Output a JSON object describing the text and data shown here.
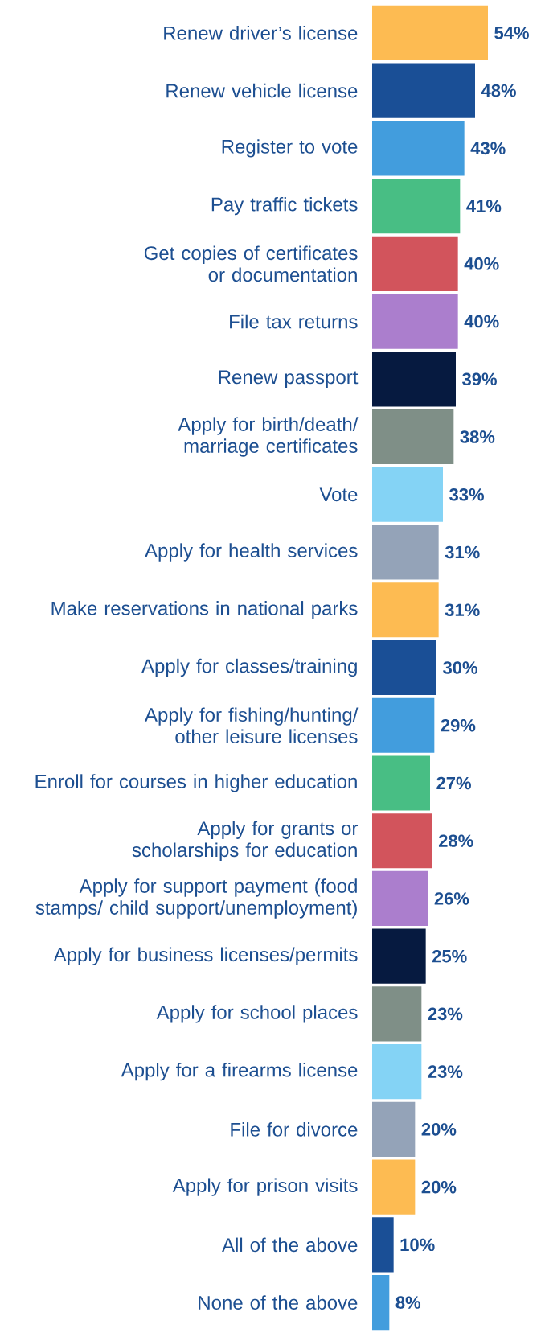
{
  "chart_data": {
    "type": "bar",
    "orientation": "horizontal",
    "categories": [
      "Renew driver’s license",
      "Renew vehicle license",
      "Register to vote",
      "Pay traffic tickets",
      "Get copies of certificates or documentation",
      "File tax returns",
      "Renew passport",
      "Apply for birth/death/ marriage certificates",
      "Vote",
      "Apply for health services",
      "Make reservations in national parks",
      "Apply for classes/training",
      "Apply for fishing/hunting/ other leisure licenses",
      "Enroll for courses in higher education",
      "Apply for grants or scholarships for education",
      "Apply for support payment (food stamps/ child support/unemployment)",
      "Apply for business licenses/permits",
      "Apply for school places",
      "Apply for a firearms license",
      "File for divorce",
      "Apply for prison visits",
      "All of the above",
      "None of the above"
    ],
    "values": [
      54,
      48,
      43,
      41,
      40,
      40,
      39,
      38,
      33,
      31,
      31,
      30,
      29,
      27,
      28,
      26,
      25,
      23,
      23,
      20,
      20,
      10,
      8
    ],
    "value_labels": [
      "54%",
      "48%",
      "43%",
      "41%",
      "40%",
      "40%",
      "39%",
      "38%",
      "33%",
      "31%",
      "31%",
      "30%",
      "29%",
      "27%",
      "28%",
      "26%",
      "25%",
      "23%",
      "23%",
      "20%",
      "20%",
      "10%",
      "8%"
    ],
    "colors": [
      "#fdbb52",
      "#1a4f96",
      "#429ddd",
      "#48be84",
      "#d2545c",
      "#ab7ecd",
      "#061a40",
      "#7f8f87",
      "#84d3f5",
      "#94a3b8",
      "#fdbb52",
      "#1a4f96",
      "#429ddd",
      "#48be84",
      "#d2545c",
      "#ab7ecd",
      "#061a40",
      "#7f8f87",
      "#84d3f5",
      "#94a3b8",
      "#fdbb52",
      "#1a4f96",
      "#429ddd"
    ]
  }
}
